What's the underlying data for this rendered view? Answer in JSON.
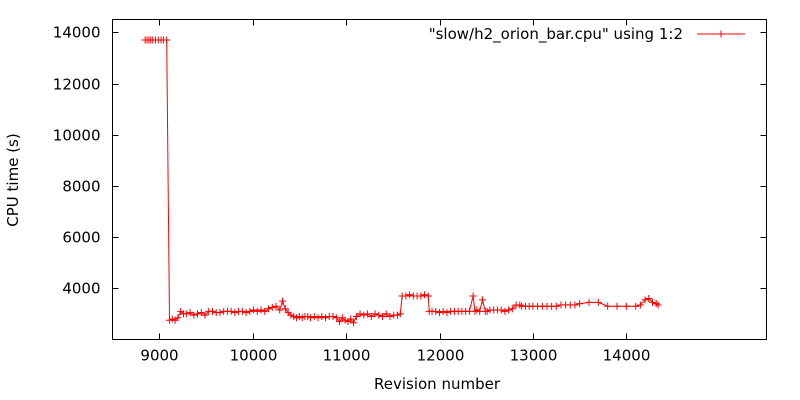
{
  "chart_data": {
    "type": "line",
    "title": "",
    "xlabel": "Revision number",
    "ylabel": "CPU time (s)",
    "xlim": [
      8500,
      15500
    ],
    "ylim": [
      2000,
      14500
    ],
    "x_ticks": [
      9000,
      10000,
      11000,
      12000,
      13000,
      14000
    ],
    "y_ticks": [
      4000,
      6000,
      8000,
      10000,
      12000,
      14000
    ],
    "grid": false,
    "legend_position": "top-right",
    "colors": {
      "series": "#ff0000",
      "axis": "#000000"
    },
    "series": [
      {
        "name": "\"slow/h2_orion_bar.cpu\" using 1:2",
        "marker": "plus",
        "x": [
          8850,
          8870,
          8890,
          8910,
          8930,
          8960,
          8990,
          9020,
          9045,
          9080,
          9110,
          9140,
          9170,
          9200,
          9230,
          9260,
          9290,
          9330,
          9370,
          9410,
          9450,
          9490,
          9530,
          9570,
          9610,
          9650,
          9690,
          9730,
          9770,
          9810,
          9850,
          9890,
          9930,
          9970,
          10010,
          10050,
          10090,
          10130,
          10170,
          10210,
          10250,
          10290,
          10320,
          10350,
          10380,
          10410,
          10440,
          10470,
          10500,
          10530,
          10560,
          10590,
          10620,
          10660,
          10700,
          10740,
          10780,
          10820,
          10860,
          10900,
          10930,
          10960,
          10990,
          11020,
          11050,
          11080,
          11110,
          11150,
          11190,
          11230,
          11270,
          11310,
          11350,
          11390,
          11430,
          11470,
          11510,
          11550,
          11580,
          11600,
          11640,
          11680,
          11720,
          11760,
          11800,
          11840,
          11880,
          11890,
          11920,
          11960,
          12000,
          12040,
          12080,
          12120,
          12160,
          12200,
          12240,
          12280,
          12320,
          12360,
          12380,
          12400,
          12430,
          12460,
          12490,
          12510,
          12540,
          12580,
          12620,
          12660,
          12700,
          12740,
          12780,
          12820,
          12860,
          12880,
          12920,
          12960,
          13000,
          13050,
          13100,
          13150,
          13200,
          13250,
          13300,
          13350,
          13400,
          13450,
          13500,
          13600,
          13700,
          13800,
          13900,
          14000,
          14100,
          14150,
          14200,
          14240,
          14280,
          14320,
          14340
        ],
        "y": [
          13700,
          13700,
          13700,
          13700,
          13700,
          13700,
          13700,
          13700,
          13700,
          13700,
          2750,
          2800,
          2750,
          2850,
          3100,
          3000,
          3000,
          3050,
          2950,
          3000,
          3050,
          2950,
          3100,
          3100,
          3050,
          3050,
          3100,
          3100,
          3100,
          3050,
          3100,
          3100,
          3050,
          3100,
          3150,
          3100,
          3150,
          3100,
          3200,
          3250,
          3300,
          3150,
          3500,
          3200,
          3050,
          2950,
          2900,
          2850,
          2900,
          2850,
          2900,
          2900,
          2850,
          2900,
          2850,
          2900,
          2850,
          2900,
          2900,
          2850,
          2700,
          2850,
          2750,
          2700,
          2800,
          2650,
          2900,
          3000,
          2950,
          3000,
          2900,
          3000,
          2950,
          2900,
          3000,
          2900,
          2950,
          2950,
          3000,
          3700,
          3700,
          3750,
          3700,
          3700,
          3700,
          3750,
          3700,
          3100,
          3100,
          3100,
          3050,
          3100,
          3050,
          3100,
          3100,
          3100,
          3100,
          3100,
          3100,
          3700,
          3100,
          3150,
          3100,
          3550,
          3100,
          3100,
          3150,
          3150,
          3150,
          3150,
          3100,
          3150,
          3200,
          3350,
          3350,
          3300,
          3300,
          3300,
          3300,
          3300,
          3300,
          3300,
          3300,
          3300,
          3350,
          3350,
          3350,
          3350,
          3400,
          3450,
          3450,
          3300,
          3300,
          3300,
          3300,
          3350,
          3550,
          3600,
          3450,
          3400,
          3350
        ]
      }
    ]
  }
}
